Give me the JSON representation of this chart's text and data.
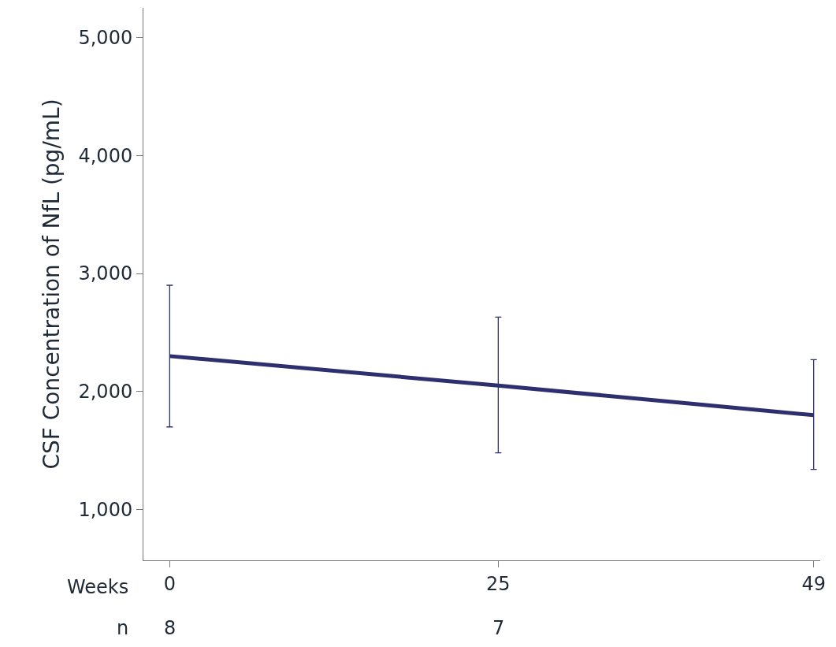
{
  "chart_data": {
    "type": "line",
    "ylabel": "CSF Concentration of NfL (pg/mL)",
    "x": [
      0,
      25,
      49
    ],
    "series": [
      {
        "color": "#2e2f6e",
        "values": [
          2300,
          2050,
          1800
        ],
        "errors": [
          [
            1700,
            2900
          ],
          [
            1480,
            2630
          ],
          [
            1340,
            2270
          ]
        ]
      }
    ],
    "xlim": [
      -2,
      49.5
    ],
    "xticks": [
      0,
      25,
      49
    ],
    "ylim": [
      570,
      5250
    ],
    "yticks": [
      {
        "value": 1000,
        "label": "1,000"
      },
      {
        "value": 2000,
        "label": "2,000"
      },
      {
        "value": 3000,
        "label": "3,000"
      },
      {
        "value": 4000,
        "label": "4,000"
      },
      {
        "value": 5000,
        "label": "5,000"
      }
    ],
    "annotations": [
      "Weeks",
      "n",
      "8",
      "7"
    ],
    "marker": "none",
    "line_style": "solid"
  }
}
